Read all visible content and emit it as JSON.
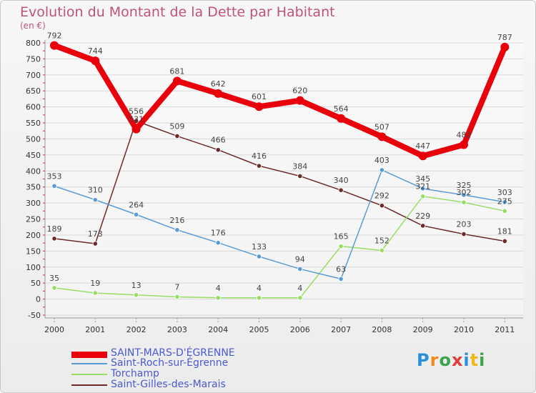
{
  "chart_data": {
    "type": "line",
    "title": "Evolution du Montant de la Dette par Habitant",
    "subtitle": "(en €)",
    "x": [
      "2000",
      "2001",
      "2002",
      "2003",
      "2004",
      "2005",
      "2006",
      "2007",
      "2008",
      "2009",
      "2010",
      "2011"
    ],
    "ylim": [
      -50,
      800
    ],
    "yticks": [
      -50,
      0,
      50,
      100,
      150,
      200,
      250,
      300,
      350,
      400,
      450,
      500,
      550,
      600,
      650,
      700,
      750,
      800
    ],
    "grid": true,
    "legend_position": "bottom-left",
    "series": [
      {
        "name": "SAINT-MARS-D'ÉGRENNE",
        "color": "#e8000b",
        "values": [
          792,
          744,
          531,
          681,
          642,
          601,
          620,
          564,
          507,
          447,
          482,
          787
        ]
      },
      {
        "name": "Saint-Roch-sur-Égrenne",
        "color": "#5b9bd5",
        "values": [
          353,
          310,
          264,
          216,
          176,
          133,
          94,
          63,
          403,
          345,
          325,
          303
        ]
      },
      {
        "name": "Torchamp",
        "color": "#99dd66",
        "values": [
          35,
          19,
          13,
          7,
          4,
          4,
          4,
          165,
          152,
          321,
          302,
          275
        ]
      },
      {
        "name": "Saint-Gilles-des-Marais",
        "color": "#6b2a2a",
        "values": [
          189,
          173,
          556,
          509,
          466,
          416,
          384,
          340,
          292,
          229,
          203,
          181
        ]
      }
    ]
  },
  "logo": {
    "p": "P",
    "r": "r",
    "o": "o",
    "x": "x",
    "i1": "i",
    "t": "t",
    "i2": "i"
  }
}
